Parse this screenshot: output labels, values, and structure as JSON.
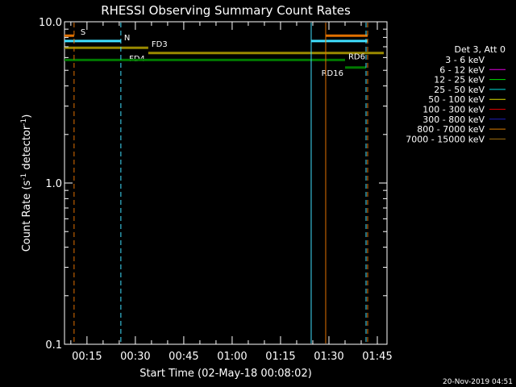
{
  "chart_data": {
    "type": "line",
    "title": "RHESSI Observing Summary Count Rates",
    "xlabel": "Start Time (02-May-18 00:08:02)",
    "ylabel_main": "Count Rate (s",
    "ylabel_sup1": "-1",
    "ylabel_mid": " detector",
    "ylabel_sup2": "-1",
    "ylabel_end": ")",
    "y_scale": "log",
    "ylim": [
      0.1,
      10.0
    ],
    "xlim": [
      "00:08:02",
      "01:48:00"
    ],
    "y_ticks": [
      {
        "value": 0.1,
        "label": "0.1"
      },
      {
        "value": 1.0,
        "label": "1.0"
      },
      {
        "value": 10.0,
        "label": "10.0"
      }
    ],
    "x_ticks": [
      {
        "value": "00:15",
        "label": "00:15"
      },
      {
        "value": "00:30",
        "label": "00:30"
      },
      {
        "value": "00:45",
        "label": "00:45"
      },
      {
        "value": "01:00",
        "label": "01:00"
      },
      {
        "value": "01:15",
        "label": "01:15"
      },
      {
        "value": "01:30",
        "label": "01:30"
      },
      {
        "value": "01:45",
        "label": "01:45"
      }
    ],
    "legend": {
      "placement": "right",
      "title": "Det 3, Att 0",
      "entries": [
        {
          "label": "3 - 6 keV",
          "color": "#000000"
        },
        {
          "label": "6 - 12 keV",
          "color": "#e000e0"
        },
        {
          "label": "12 - 25 keV",
          "color": "#00e000"
        },
        {
          "label": "25 - 50 keV",
          "color": "#00e0e0"
        },
        {
          "label": "50 - 100 keV",
          "color": "#e0e000"
        },
        {
          "label": "100 - 300 keV",
          "color": "#e00000"
        },
        {
          "label": "300 - 800 keV",
          "color": "#2020c0"
        },
        {
          "label": "800 - 7000 keV",
          "color": "#e08000"
        },
        {
          "label": "7000 - 15000 keV",
          "color": "#a07010"
        }
      ]
    },
    "flag_bars": [
      {
        "label": "S",
        "color": "#e07000",
        "y": 8.2,
        "segments": [
          [
            "00:08:02",
            "00:11:00"
          ],
          [
            "01:29:00",
            "01:42:00"
          ]
        ],
        "label_at": "00:13:00",
        "label_side": "right"
      },
      {
        "label": "N",
        "color": "#40e0ff",
        "y": 7.6,
        "segments": [
          [
            "00:08:02",
            "00:25:30"
          ],
          [
            "01:24:30",
            "01:42:00"
          ]
        ],
        "label_at": "00:26:30",
        "label_side": "right"
      },
      {
        "label": "FD3",
        "color": "#9a8a00",
        "y": 6.9,
        "segments": [
          [
            "00:08:02",
            "00:34:00"
          ]
        ],
        "label_at": "00:35:00",
        "label_side": "right"
      },
      {
        "label": "FD4",
        "color": "#9a8a00",
        "y": 6.4,
        "segments": [
          [
            "00:34:00",
            "01:47:00"
          ]
        ],
        "label_at": "00:33:00",
        "label_side": "left"
      },
      {
        "label": "RD6",
        "color": "#007800",
        "y": 5.8,
        "segments": [
          [
            "00:08:02",
            "01:35:00"
          ]
        ],
        "label_at": "01:36:00",
        "label_side": "right"
      },
      {
        "label": "RD16",
        "color": "#007800",
        "y": 5.2,
        "segments": [
          [
            "01:35:00",
            "01:41:30"
          ]
        ],
        "label_at": "01:34:30",
        "label_side": "left"
      }
    ],
    "vertical_lines": [
      {
        "x": "00:11:00",
        "color": "#e07000",
        "style": "dashed"
      },
      {
        "x": "00:25:30",
        "color": "#40e0ff",
        "style": "dashed"
      },
      {
        "x": "01:24:30",
        "color": "#40e0ff",
        "style": "solid"
      },
      {
        "x": "01:29:00",
        "color": "#e07000",
        "style": "solid"
      },
      {
        "x": "01:41:30",
        "color": "#40e0ff",
        "style": "dashed"
      },
      {
        "x": "01:42:00",
        "color": "#e07000",
        "style": "dashed"
      }
    ],
    "series": []
  },
  "footer": {
    "timestamp": "20-Nov-2019 04:51"
  }
}
